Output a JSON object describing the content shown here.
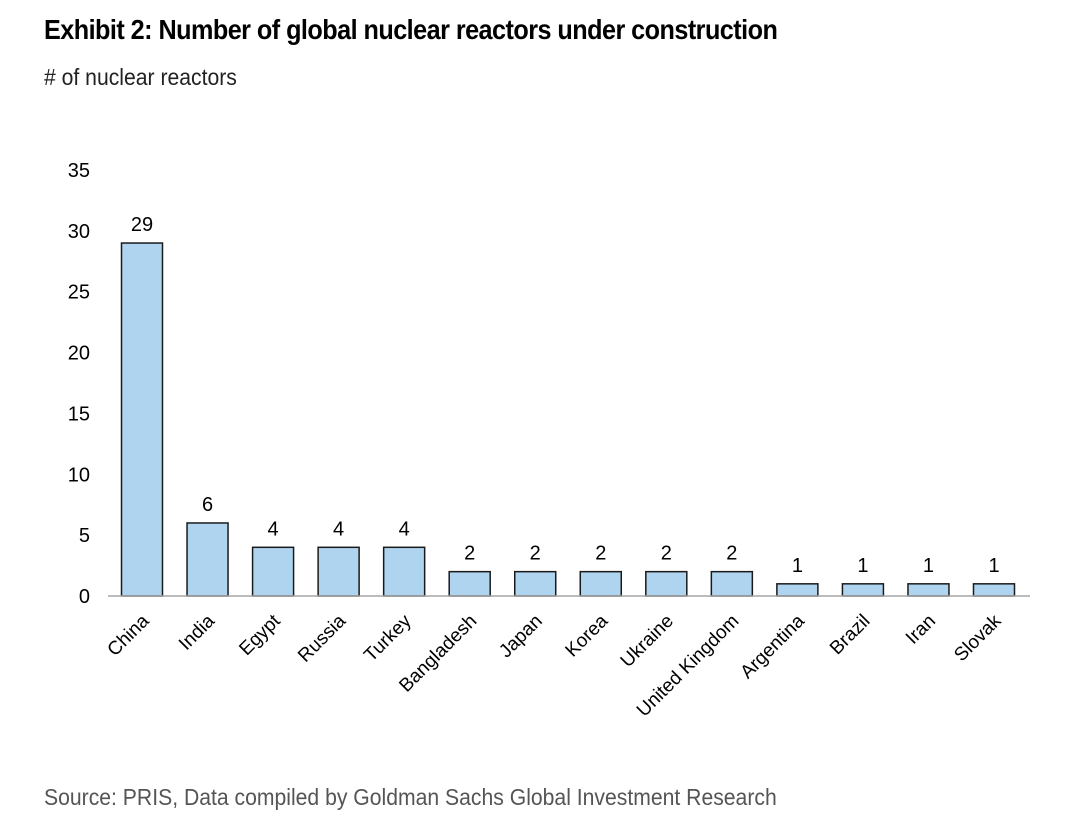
{
  "header": {
    "title": "Exhibit 2: Number of global nuclear reactors under construction",
    "subtitle": "# of nuclear reactors"
  },
  "footer": {
    "source": "Source: PRIS, Data compiled by Goldman Sachs Global Investment Research"
  },
  "colors": {
    "bar_fill": "#AED4F0",
    "bar_stroke": "#1A1A1A",
    "axis": "#A6A6A6"
  },
  "chart_data": {
    "type": "bar",
    "title": "Exhibit 2: Number of global nuclear reactors under construction",
    "ylabel": "# of nuclear reactors",
    "xlabel": "",
    "categories": [
      "China",
      "India",
      "Egypt",
      "Russia",
      "Turkey",
      "Bangladesh",
      "Japan",
      "Korea",
      "Ukraine",
      "United Kingdom",
      "Argentina",
      "Brazil",
      "Iran",
      "Slovak"
    ],
    "values": [
      29,
      6,
      4,
      4,
      4,
      2,
      2,
      2,
      2,
      2,
      1,
      1,
      1,
      1
    ],
    "ylim": [
      0,
      35
    ],
    "yticks": [
      0,
      5,
      10,
      15,
      20,
      25,
      30,
      35
    ],
    "data_labels": true,
    "grid": false,
    "legend": "none"
  }
}
